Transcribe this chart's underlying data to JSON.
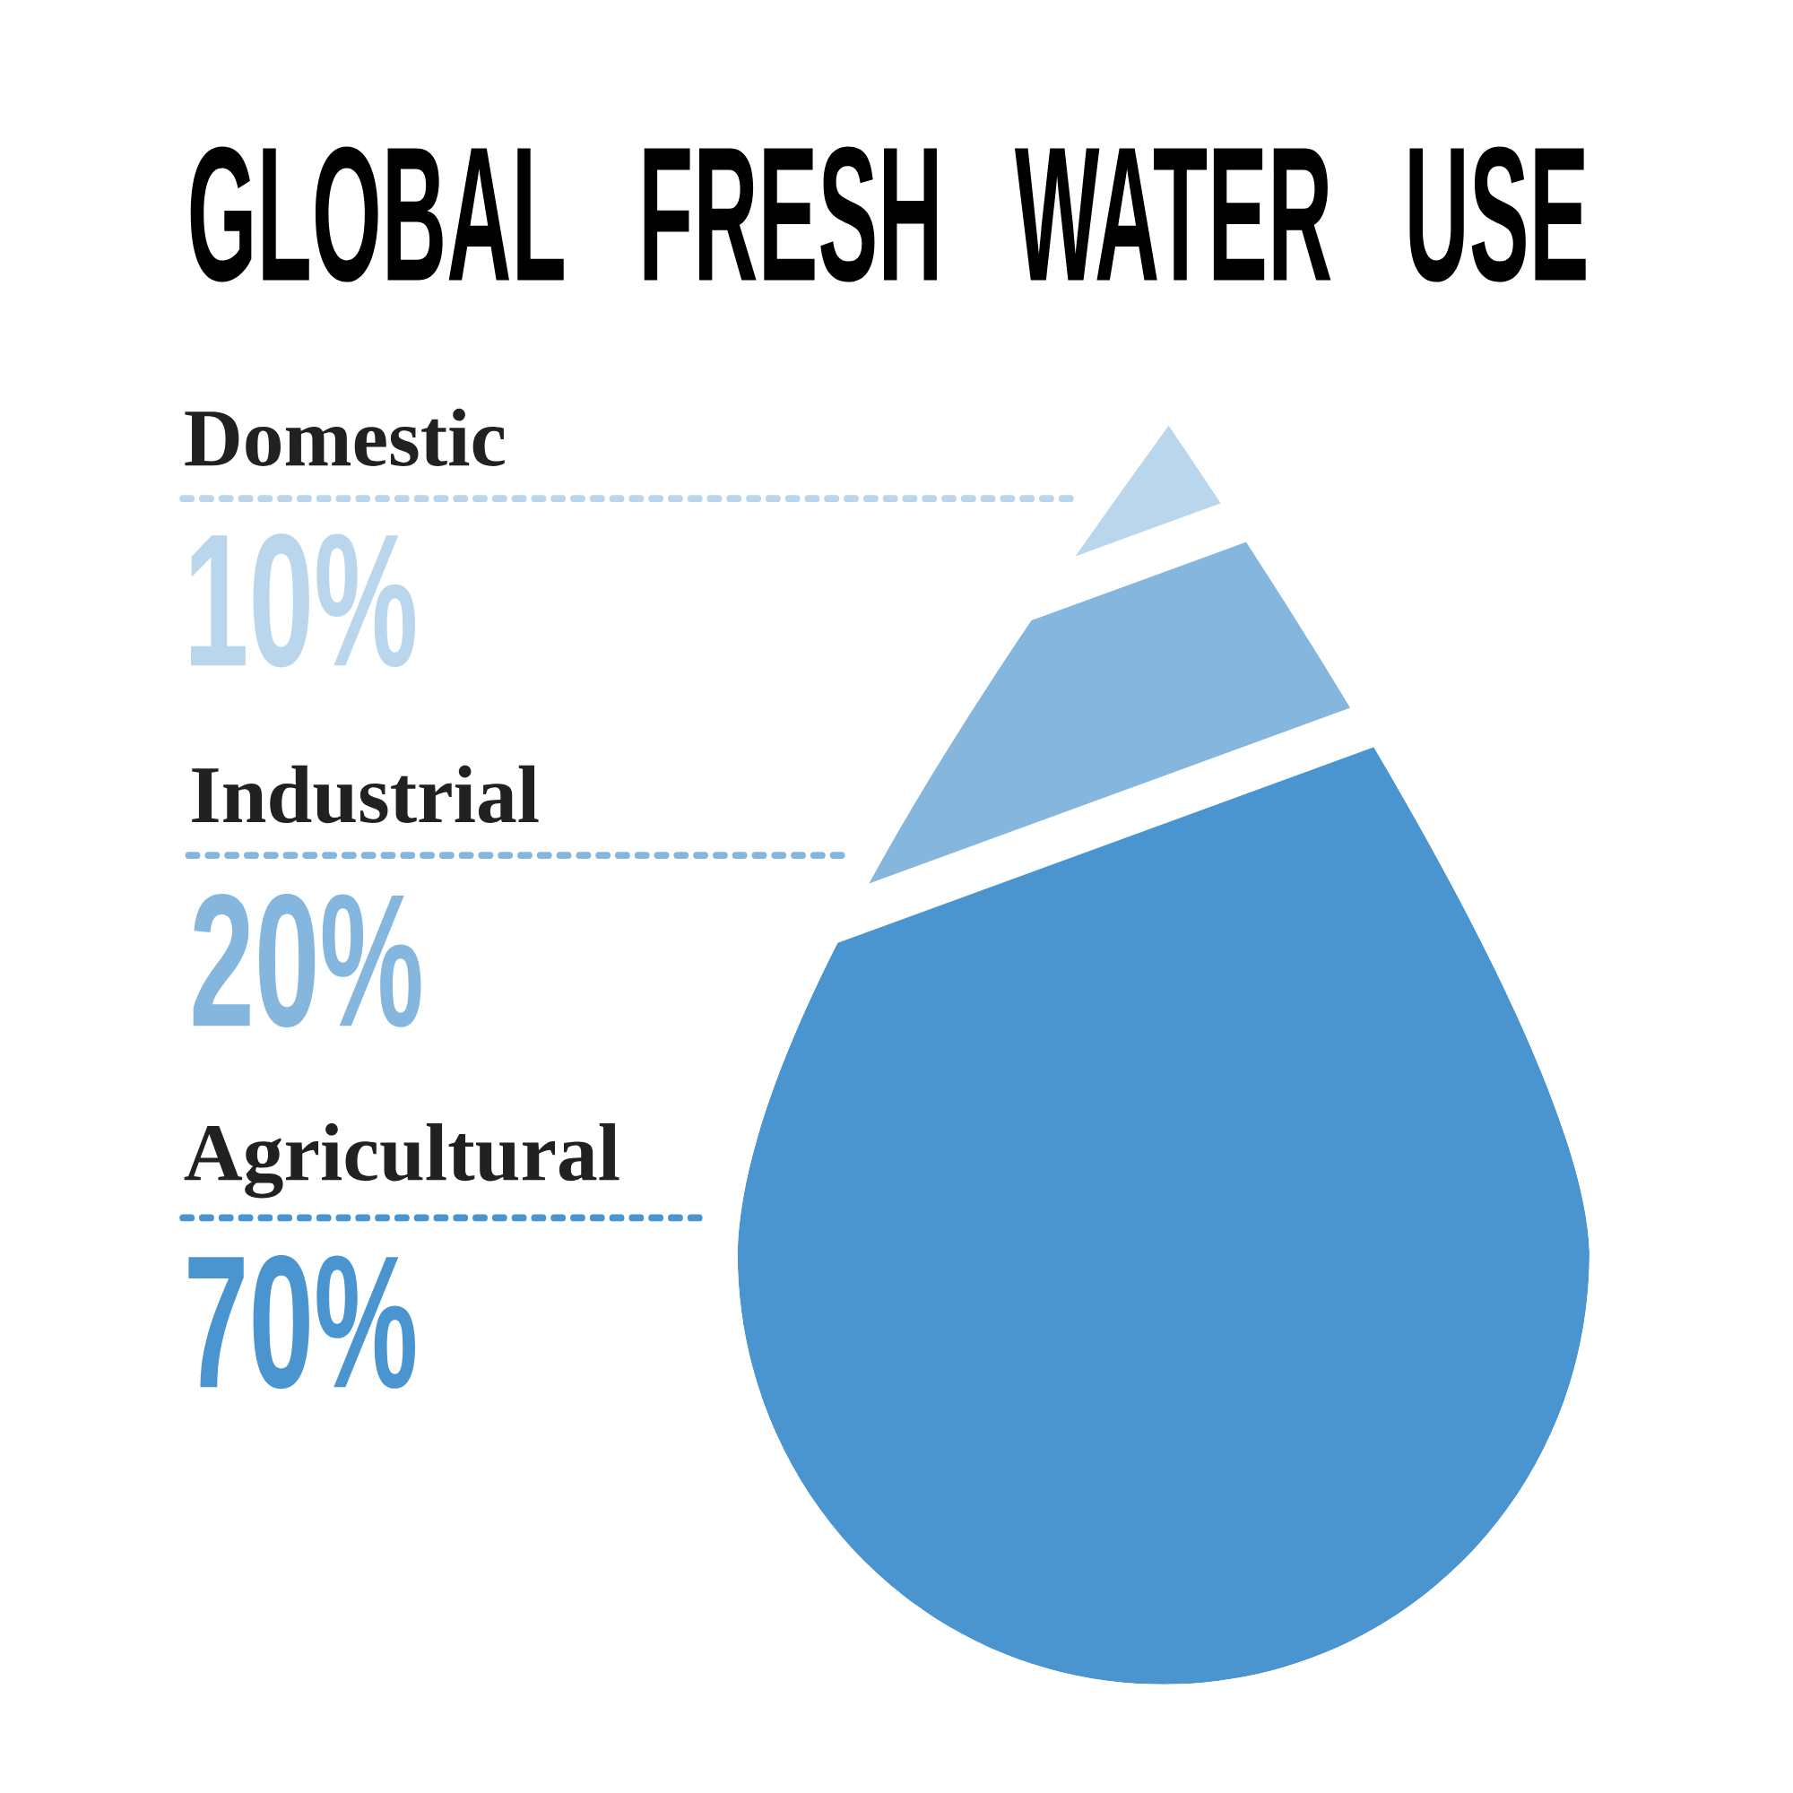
{
  "chart_data": {
    "type": "other",
    "title": "GLOBAL FRESH WATER USE",
    "categories": [
      "Domestic",
      "Industrial",
      "Agricultural"
    ],
    "values": [
      10,
      20,
      70
    ],
    "colors": [
      "#b9d6ec",
      "#85b6de",
      "#4a95d0"
    ],
    "value_labels": [
      "10%",
      "20%",
      "70%"
    ]
  }
}
